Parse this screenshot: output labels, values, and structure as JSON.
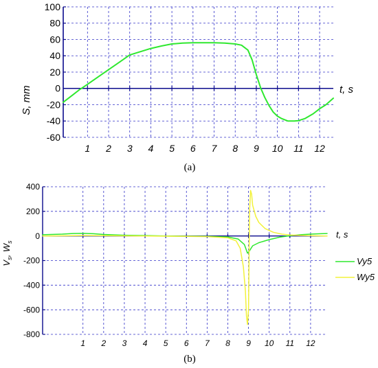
{
  "colors": {
    "axis": "#0a0a8c",
    "grid": "#3030c8",
    "green": "#2ee82e",
    "yellow": "#f2f23a"
  },
  "chart_data": [
    {
      "type": "line",
      "panel_label": "(a)",
      "xlabel": "t, s",
      "ylabel": "S, mm",
      "xlim": [
        -0.15,
        12.65
      ],
      "ylim": [
        -60,
        100
      ],
      "grid": true,
      "x_ticks": [
        1,
        2,
        3,
        4,
        5,
        6,
        7,
        8,
        9,
        10,
        11,
        12
      ],
      "y_ticks": [
        -60,
        -40,
        -20,
        0,
        20,
        40,
        60,
        80,
        100
      ],
      "series": [
        {
          "color": "green",
          "x": [
            -0.15,
            0.3,
            0.6,
            1.0,
            1.5,
            2.0,
            2.5,
            3.0,
            3.5,
            4.0,
            4.5,
            5.0,
            5.5,
            6.0,
            6.5,
            7.0,
            7.5,
            8.0,
            8.3,
            8.6,
            8.8,
            9.0,
            9.2,
            9.4,
            9.6,
            9.8,
            10.0,
            10.2,
            10.5,
            10.8,
            11.0,
            11.3,
            11.7,
            12.0,
            12.3,
            12.65
          ],
          "y": [
            -17,
            -8,
            -2,
            5,
            14,
            23,
            32,
            41,
            45,
            49,
            52,
            54.5,
            55.5,
            56,
            56,
            56,
            55.5,
            54.5,
            53,
            47,
            35,
            17,
            1,
            -11,
            -21,
            -29,
            -34,
            -37,
            -40,
            -40,
            -39.5,
            -37,
            -31,
            -25,
            -20,
            -12
          ]
        }
      ]
    },
    {
      "type": "line",
      "panel_label": "(b)",
      "xlabel": "t, s",
      "ylabel_main": "V",
      "ylabel_sub1": "s",
      "ylabel_sep": ", W",
      "ylabel_sub2": "s",
      "xlim": [
        -0.95,
        12.8
      ],
      "ylim": [
        -800,
        400
      ],
      "grid": true,
      "x_ticks": [
        1,
        2,
        3,
        4,
        5,
        6,
        7,
        8,
        9,
        10,
        11,
        12
      ],
      "y_ticks": [
        -800,
        -600,
        -400,
        -200,
        0,
        200,
        400
      ],
      "legend_position": "right",
      "series": [
        {
          "name": "Vy5",
          "color": "green",
          "x": [
            -0.95,
            0.0,
            0.5,
            1.0,
            1.5,
            2.0,
            3.0,
            4.0,
            5.0,
            6.0,
            7.0,
            8.0,
            8.5,
            8.8,
            8.95,
            9.05,
            9.2,
            9.5,
            10.0,
            10.5,
            11.0,
            11.5,
            12.0,
            12.5,
            12.8
          ],
          "y": [
            10,
            15,
            20,
            21,
            18,
            12,
            6,
            3,
            0,
            -2,
            -3,
            -8,
            -25,
            -70,
            -140,
            -120,
            -80,
            -55,
            -30,
            -10,
            2,
            10,
            15,
            18,
            20
          ]
        },
        {
          "name": "Wy5",
          "color": "yellow",
          "x": [
            -0.95,
            1.0,
            2.0,
            3.0,
            4.0,
            5.0,
            6.0,
            7.0,
            8.0,
            8.4,
            8.6,
            8.75,
            8.85,
            8.9,
            8.95,
            9.0,
            9.05,
            9.1,
            9.15,
            9.2,
            9.35,
            9.5,
            9.8,
            10.2,
            10.6,
            11.0,
            11.5,
            12.0,
            12.8
          ],
          "y": [
            0,
            3,
            2,
            1,
            0,
            -2,
            -3,
            -5,
            -15,
            -40,
            -100,
            -250,
            -450,
            -650,
            -720,
            -600,
            200,
            370,
            340,
            250,
            160,
            110,
            60,
            30,
            15,
            8,
            4,
            2,
            0
          ]
        }
      ]
    }
  ]
}
